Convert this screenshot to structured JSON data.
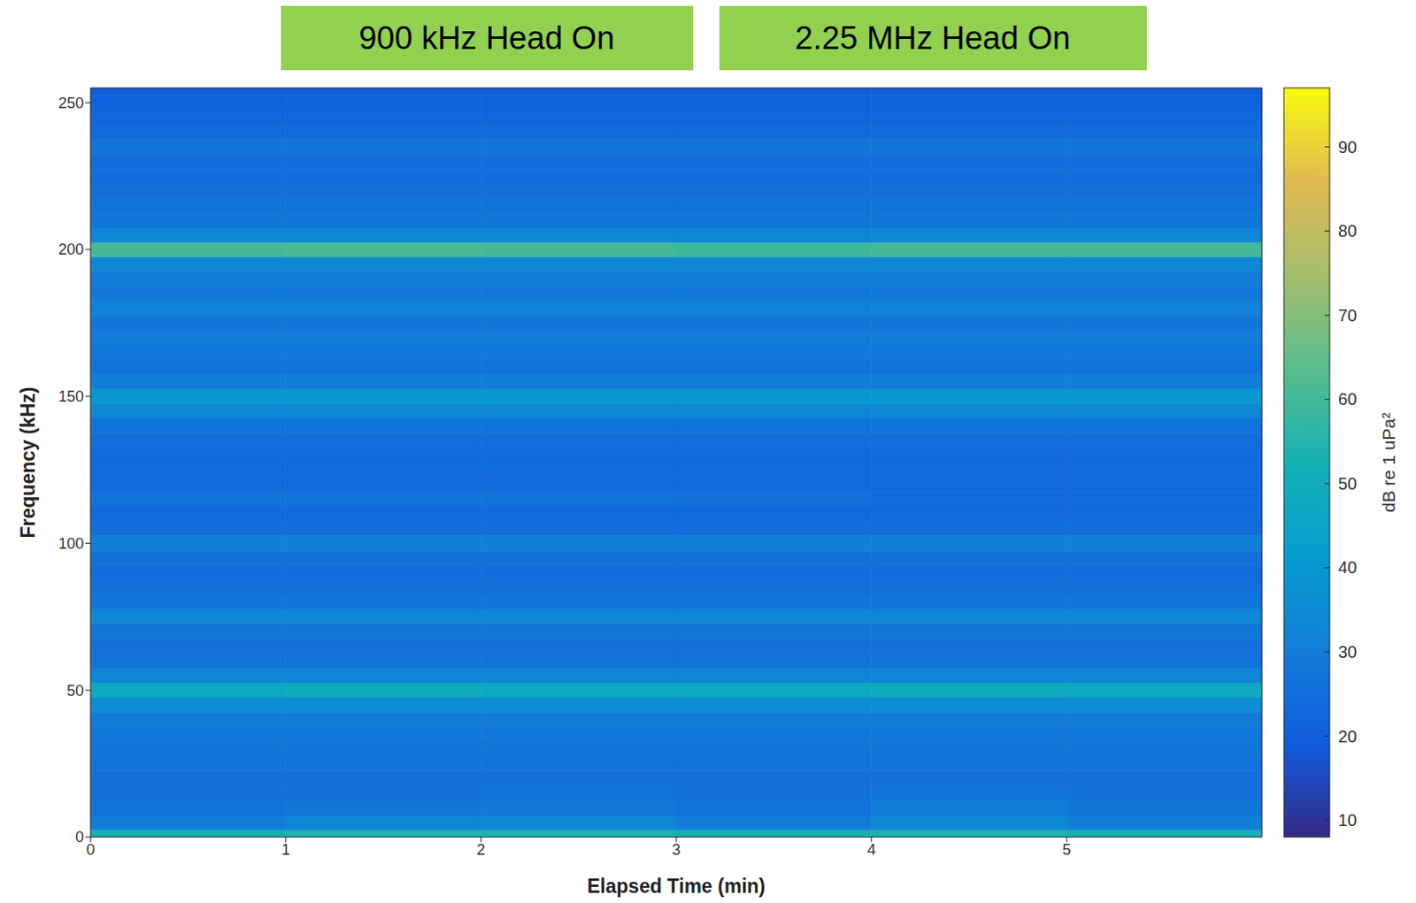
{
  "chart_data": {
    "type": "heatmap",
    "annotations": [
      "900 kHz Head On",
      "2.25 MHz Head On"
    ],
    "xlabel": "Elapsed Time (min)",
    "ylabel": "Frequency (kHz)",
    "xlim": [
      0,
      6
    ],
    "xticks": [
      0,
      1,
      2,
      3,
      4,
      5
    ],
    "ylim": [
      0,
      255
    ],
    "yticks": [
      0,
      50,
      100,
      150,
      200,
      250
    ],
    "grid": false,
    "x_bins": [
      0,
      1,
      2,
      3,
      4,
      5,
      6
    ],
    "y_bins": [
      0,
      2.5,
      7.5,
      12.5,
      17.5,
      22.5,
      27.5,
      32.5,
      37.5,
      42.5,
      47.5,
      52.5,
      57.5,
      62.5,
      67.5,
      72.5,
      77.5,
      82.5,
      87.5,
      92.5,
      97.5,
      102.5,
      107.5,
      112.5,
      117.5,
      122.5,
      127.5,
      132.5,
      137.5,
      142.5,
      147.5,
      152.5,
      157.5,
      162.5,
      167.5,
      172.5,
      177.5,
      182.5,
      187.5,
      192.5,
      197.5,
      202.5,
      207.5,
      212.5,
      217.5,
      222.5,
      227.5,
      232.5,
      237.5,
      242.5,
      247.5,
      252.5,
      255
    ],
    "z": [
      [
        52,
        53,
        53,
        52,
        53,
        52
      ],
      [
        30,
        33,
        34,
        30,
        34,
        31
      ],
      [
        27,
        28,
        29,
        27,
        30,
        28
      ],
      [
        26,
        26,
        27,
        26,
        27,
        26
      ],
      [
        26,
        26,
        26,
        26,
        26,
        26
      ],
      [
        27,
        27,
        27,
        27,
        27,
        27
      ],
      [
        28,
        28,
        28,
        28,
        28,
        28
      ],
      [
        29,
        29,
        29,
        29,
        29,
        29
      ],
      [
        30,
        30,
        30,
        30,
        30,
        30
      ],
      [
        36,
        36,
        36,
        36,
        36,
        36
      ],
      [
        48,
        49,
        48,
        48,
        49,
        48
      ],
      [
        33,
        33,
        33,
        33,
        33,
        33
      ],
      [
        27,
        27,
        27,
        27,
        27,
        27
      ],
      [
        26,
        26,
        26,
        26,
        26,
        26
      ],
      [
        28,
        28,
        28,
        28,
        28,
        28
      ],
      [
        34,
        34,
        34,
        34,
        34,
        34
      ],
      [
        28,
        28,
        28,
        28,
        28,
        28
      ],
      [
        26,
        26,
        26,
        26,
        26,
        26
      ],
      [
        25,
        25,
        25,
        25,
        25,
        25
      ],
      [
        26,
        26,
        26,
        26,
        26,
        26
      ],
      [
        31,
        31,
        31,
        31,
        31,
        31
      ],
      [
        25,
        25,
        25,
        25,
        25,
        25
      ],
      [
        24,
        24,
        24,
        24,
        24,
        24
      ],
      [
        27,
        27,
        27,
        26,
        24,
        24
      ],
      [
        24,
        24,
        24,
        24,
        24,
        24
      ],
      [
        24,
        24,
        24,
        24,
        24,
        24
      ],
      [
        24,
        24,
        24,
        24,
        24,
        24
      ],
      [
        25,
        25,
        25,
        25,
        25,
        25
      ],
      [
        27,
        27,
        27,
        27,
        27,
        27
      ],
      [
        34,
        34,
        34,
        34,
        34,
        34
      ],
      [
        40,
        40,
        40,
        40,
        40,
        40
      ],
      [
        31,
        31,
        31,
        31,
        31,
        31
      ],
      [
        27,
        27,
        27,
        27,
        27,
        27
      ],
      [
        29,
        29,
        29,
        29,
        29,
        29
      ],
      [
        30,
        30,
        30,
        30,
        30,
        30
      ],
      [
        28,
        28,
        28,
        28,
        28,
        28
      ],
      [
        32,
        32,
        32,
        32,
        32,
        32
      ],
      [
        29,
        29,
        29,
        29,
        29,
        29
      ],
      [
        30,
        30,
        30,
        30,
        30,
        30
      ],
      [
        34,
        34,
        34,
        34,
        34,
        34
      ],
      [
        60,
        61,
        60,
        59,
        60,
        60
      ],
      [
        33,
        33,
        33,
        33,
        33,
        33
      ],
      [
        28,
        28,
        28,
        28,
        28,
        28
      ],
      [
        27,
        27,
        27,
        27,
        27,
        27
      ],
      [
        26,
        26,
        26,
        26,
        26,
        26
      ],
      [
        25,
        25,
        25,
        25,
        25,
        25
      ],
      [
        25,
        25,
        25,
        25,
        25,
        25
      ],
      [
        28,
        28,
        28,
        28,
        28,
        28
      ],
      [
        24,
        24,
        24,
        24,
        24,
        24
      ],
      [
        23,
        23,
        23,
        23,
        23,
        23
      ],
      [
        21,
        21,
        21,
        21,
        21,
        21
      ],
      [
        20,
        20,
        20,
        20,
        20,
        20
      ]
    ],
    "colorbar_range": [
      8,
      97
    ],
    "colorbar_ticks": [
      10,
      20,
      30,
      40,
      50,
      60,
      70,
      80,
      90
    ],
    "colorbar_label": "dB re 1 uPa²"
  }
}
